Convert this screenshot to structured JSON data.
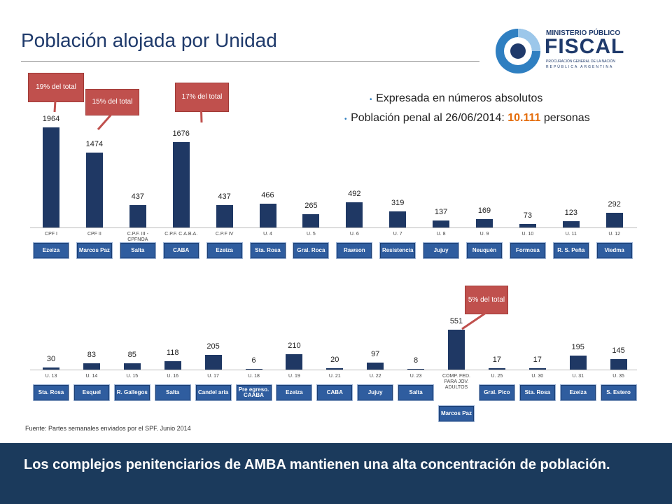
{
  "title": "Población alojada por Unidad",
  "logo": {
    "line1": "MINISTERIO PÚBLICO",
    "line2": "FISCAL",
    "line3": "PROCURACIÓN GENERAL DE LA NACIÓN",
    "line4": "REPÚBLICA ARGENTINA"
  },
  "bullets": [
    {
      "text": "Expresada en números absolutos"
    },
    {
      "text": "Población penal al 26/06/2014: ",
      "highlight": "10.111",
      "suffix": " personas"
    }
  ],
  "source": "Fuente: Partes semanales enviados por el SPF. Junio 2014",
  "footer": "Los complejos penitenciarios de AMBA mantienen una alta concentración de población.",
  "chart_data": [
    {
      "type": "bar",
      "color": "#1f3864",
      "categories": [
        "CPF I",
        "CPF II",
        "C.P.F. III - CPFNOA",
        "C.P.F. C.A.B.A.",
        "C.P.F IV",
        "U. 4",
        "U. 5",
        "U. 6",
        "U. 7",
        "U. 8",
        "U. 9",
        "U. 10",
        "U. 11",
        "U. 12"
      ],
      "values": [
        1964,
        1474,
        437,
        1676,
        437,
        466,
        265,
        492,
        319,
        137,
        169,
        73,
        123,
        292
      ],
      "locations": [
        "Ezeiza",
        "Marcos Paz",
        "Salta",
        "CABA",
        "Ezeiza",
        "Sta. Rosa",
        "Gral. Roca",
        "Rawson",
        "Resistencia",
        "Jujuy",
        "Neuquén",
        "Formosa",
        "R. S. Peña",
        "Viedma"
      ],
      "callouts": [
        "19% del total",
        "15% del total",
        null,
        "17% del total",
        null,
        null,
        null,
        null,
        null,
        null,
        null,
        null,
        null,
        null
      ]
    },
    {
      "type": "bar",
      "color": "#1f3864",
      "categories": [
        "U. 13",
        "U. 14",
        "U. 15",
        "U. 16",
        "U. 17",
        "U. 18",
        "U. 19",
        "U. 21",
        "U. 22",
        "U. 23",
        "COMP. FED. PARA JOV. ADULTOS",
        "U. 25",
        "U. 30",
        "U. 31",
        "U. 35"
      ],
      "values": [
        30,
        83,
        85,
        118,
        205,
        6,
        210,
        20,
        97,
        8,
        551,
        17,
        17,
        195,
        145
      ],
      "locations": [
        "Sta. Rosa",
        "Esquel",
        "R. Gallegos",
        "Salta",
        "Candel aria",
        "Pre egreso. CAABA",
        "Ezeiza",
        "CABA",
        "Jujuy",
        "Salta",
        "Marcos Paz",
        "Gral. Pico",
        "Sta. Rosa",
        "Ezeiza",
        "S. Estero"
      ],
      "callouts": [
        null,
        null,
        null,
        null,
        null,
        null,
        null,
        null,
        null,
        null,
        "5% del total",
        null,
        null,
        null,
        null
      ]
    }
  ]
}
